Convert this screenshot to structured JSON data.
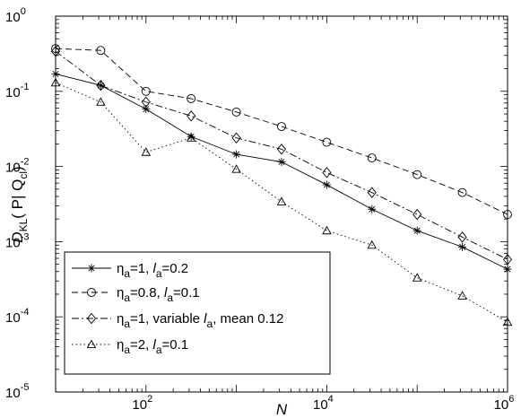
{
  "chart_data": {
    "type": "line",
    "x_scale": "log",
    "y_scale": "log",
    "xlim": [
      10,
      1000000
    ],
    "ylim": [
      1e-05,
      1
    ],
    "x_ticks": [
      {
        "value": 100,
        "base": "10",
        "exp": "2"
      },
      {
        "value": 10000,
        "base": "10",
        "exp": "4"
      },
      {
        "value": 1000000,
        "base": "10",
        "exp": "6"
      }
    ],
    "y_ticks": [
      {
        "value": 1,
        "base": "10",
        "exp": "0"
      },
      {
        "value": 0.1,
        "base": "10",
        "exp": "-1"
      },
      {
        "value": 0.01,
        "base": "10",
        "exp": "-2"
      },
      {
        "value": 0.001,
        "base": "10",
        "exp": "-3"
      },
      {
        "value": 0.0001,
        "base": "10",
        "exp": "-4"
      },
      {
        "value": 1e-05,
        "base": "10",
        "exp": "-5"
      }
    ],
    "xlabel": "N",
    "ylabel": {
      "main": "D",
      "sub": "KL",
      "mid": "( P| Q",
      "sub2": "cl",
      "end": ")"
    },
    "legend_position": "bottom-left",
    "x": [
      10,
      31.6,
      100,
      316,
      1000,
      3160,
      10000,
      31600,
      100000,
      316000,
      1000000
    ],
    "series": [
      {
        "legend": {
          "eta": "η",
          "eta_sub": "a",
          "eta_val": "=1,  ",
          "l": "l",
          "l_sub": "a",
          "l_val": "=0.2"
        },
        "marker": "star",
        "dash": "",
        "values": [
          0.17,
          0.12,
          0.058,
          0.025,
          0.0145,
          0.0115,
          0.0057,
          0.0027,
          0.0014,
          0.00085,
          0.00043
        ]
      },
      {
        "legend": {
          "eta": "η",
          "eta_sub": "a",
          "eta_val": "=0.8,  ",
          "l": "l",
          "l_sub": "a",
          "l_val": "=0.1"
        },
        "marker": "circle",
        "dash": "7,4",
        "values": [
          0.37,
          0.35,
          0.1,
          0.08,
          0.053,
          0.034,
          0.021,
          0.013,
          0.0078,
          0.0045,
          0.0023
        ]
      },
      {
        "legend": {
          "eta": "η",
          "eta_sub": "a",
          "eta_val": "=1, variable  ",
          "l": "l",
          "l_sub": "a",
          "l_val": ", mean 0.12"
        },
        "marker": "diamond",
        "dash": "8,3,2,3",
        "values": [
          0.34,
          0.12,
          0.072,
          0.047,
          0.024,
          0.017,
          0.0083,
          0.0045,
          0.0023,
          0.00115,
          0.00058
        ]
      },
      {
        "legend": {
          "eta": "η",
          "eta_sub": "a",
          "eta_val": "=2,  ",
          "l": "l",
          "l_sub": "a",
          "l_val": "=0.1"
        },
        "marker": "triangle",
        "dash": "1.5,3",
        "values": [
          0.13,
          0.072,
          0.0155,
          0.024,
          0.0092,
          0.0034,
          0.0014,
          0.0009,
          0.00033,
          0.00019,
          8.5e-05
        ]
      }
    ]
  }
}
